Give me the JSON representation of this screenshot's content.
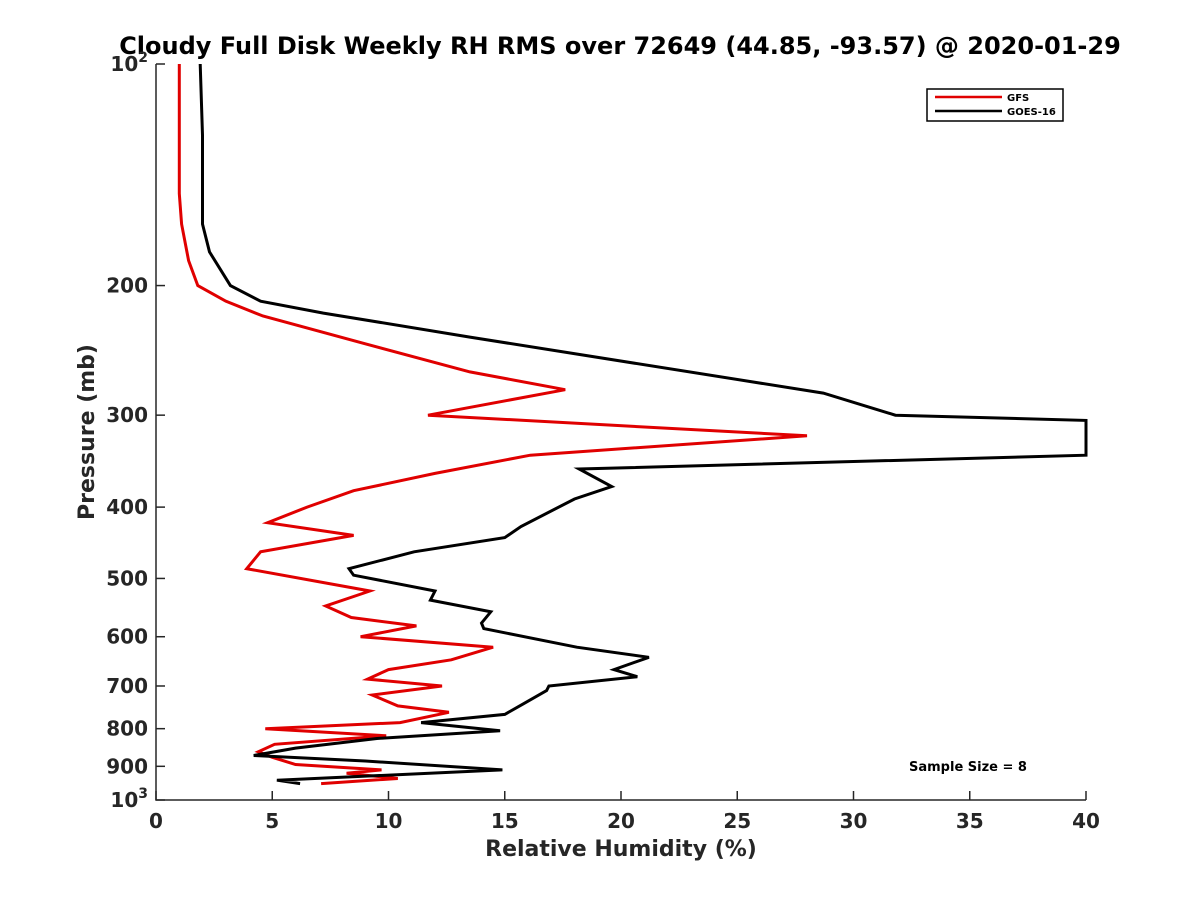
{
  "chart_data": {
    "type": "line",
    "title": "Cloudy Full Disk Weekly RH RMS over 72649 (44.85, -93.57) @ 2020-01-29",
    "xlabel": "Relative Humidity (%)",
    "ylabel": "Pressure (mb)",
    "xlim": [
      0,
      40
    ],
    "ylim": [
      100,
      1000
    ],
    "y_scale": "log",
    "y_reversed": true,
    "grid": false,
    "legend_position": "top-right",
    "x_ticks": [
      "0",
      "5",
      "10",
      "15",
      "20",
      "25",
      "30",
      "35",
      "40"
    ],
    "y_ticks": [
      {
        "value": 100,
        "base": "10",
        "exp": "2"
      },
      {
        "value": 200,
        "base": "200",
        "exp": ""
      },
      {
        "value": 300,
        "base": "300",
        "exp": ""
      },
      {
        "value": 400,
        "base": "400",
        "exp": ""
      },
      {
        "value": 500,
        "base": "500",
        "exp": ""
      },
      {
        "value": 600,
        "base": "600",
        "exp": ""
      },
      {
        "value": 700,
        "base": "700",
        "exp": ""
      },
      {
        "value": 800,
        "base": "800",
        "exp": ""
      },
      {
        "value": 900,
        "base": "900",
        "exp": ""
      },
      {
        "value": 1000,
        "base": "10",
        "exp": "3"
      }
    ],
    "series": [
      {
        "name": "GFS",
        "color": "#e00000",
        "points": [
          [
            1.0,
            100
          ],
          [
            1.0,
            125
          ],
          [
            1.0,
            150
          ],
          [
            1.1,
            165
          ],
          [
            1.4,
            185
          ],
          [
            1.8,
            200
          ],
          [
            3.0,
            210
          ],
          [
            4.6,
            220
          ],
          [
            9.0,
            240
          ],
          [
            13.5,
            262
          ],
          [
            17.6,
            277
          ],
          [
            11.7,
            300
          ],
          [
            28.0,
            320
          ],
          [
            16.1,
            340
          ],
          [
            12.0,
            360
          ],
          [
            8.5,
            380
          ],
          [
            6.5,
            400
          ],
          [
            4.8,
            420
          ],
          [
            8.5,
            437
          ],
          [
            4.5,
            460
          ],
          [
            3.9,
            485
          ],
          [
            9.2,
            520
          ],
          [
            7.3,
            545
          ],
          [
            8.4,
            565
          ],
          [
            11.2,
            580
          ],
          [
            8.8,
            600
          ],
          [
            14.5,
            620
          ],
          [
            12.7,
            645
          ],
          [
            10.0,
            665
          ],
          [
            9.1,
            685
          ],
          [
            12.3,
            700
          ],
          [
            9.3,
            720
          ],
          [
            10.4,
            745
          ],
          [
            12.6,
            760
          ],
          [
            10.5,
            785
          ],
          [
            4.7,
            800
          ],
          [
            9.9,
            818
          ],
          [
            5.1,
            840
          ],
          [
            4.4,
            860
          ],
          [
            5.0,
            875
          ],
          [
            6.0,
            895
          ],
          [
            9.7,
            910
          ],
          [
            8.2,
            920
          ],
          [
            10.4,
            935
          ],
          [
            7.1,
            950
          ]
        ]
      },
      {
        "name": "GOES-16",
        "color": "#000000",
        "points": [
          [
            1.9,
            100
          ],
          [
            2.0,
            125
          ],
          [
            2.0,
            150
          ],
          [
            2.0,
            165
          ],
          [
            2.3,
            180
          ],
          [
            3.2,
            200
          ],
          [
            4.5,
            210
          ],
          [
            7.2,
            218
          ],
          [
            13.5,
            235
          ],
          [
            28.7,
            280
          ],
          [
            31.8,
            300
          ],
          [
            40.0,
            305
          ],
          [
            40.0,
            340
          ],
          [
            18.2,
            355
          ],
          [
            19.6,
            375
          ],
          [
            18.0,
            390
          ],
          [
            15.7,
            425
          ],
          [
            15.0,
            440
          ],
          [
            11.1,
            460
          ],
          [
            8.3,
            485
          ],
          [
            8.5,
            495
          ],
          [
            12.0,
            520
          ],
          [
            11.8,
            535
          ],
          [
            14.4,
            555
          ],
          [
            14.0,
            575
          ],
          [
            14.1,
            585
          ],
          [
            18.1,
            620
          ],
          [
            21.2,
            640
          ],
          [
            19.7,
            665
          ],
          [
            20.7,
            680
          ],
          [
            16.9,
            700
          ],
          [
            16.8,
            710
          ],
          [
            15.8,
            740
          ],
          [
            15.0,
            765
          ],
          [
            11.4,
            785
          ],
          [
            14.8,
            805
          ],
          [
            9.5,
            825
          ],
          [
            6.0,
            850
          ],
          [
            4.2,
            870
          ],
          [
            9.0,
            885
          ],
          [
            14.9,
            910
          ],
          [
            5.2,
            940
          ],
          [
            6.2,
            950
          ]
        ]
      }
    ],
    "annotations": [
      {
        "text": "Sample Size = 8"
      }
    ]
  }
}
